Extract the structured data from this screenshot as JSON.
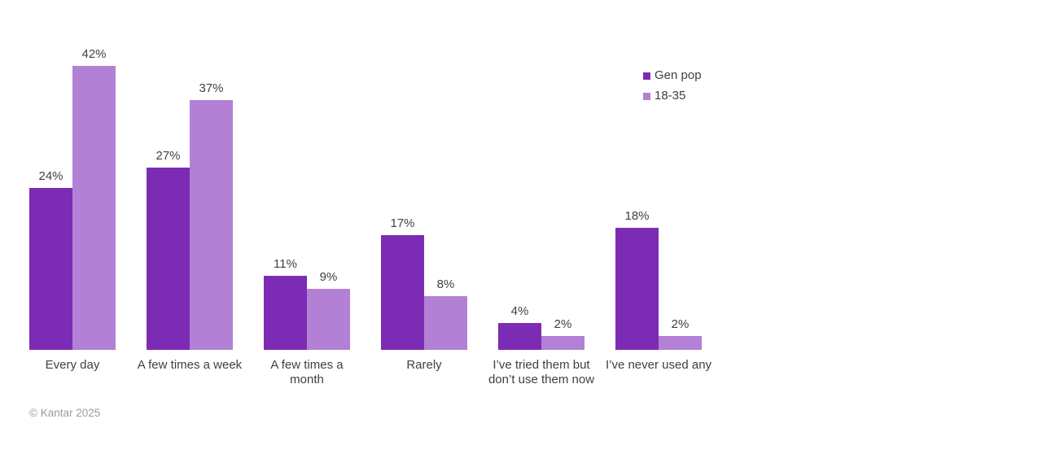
{
  "chart_data": {
    "type": "bar",
    "categories": [
      "Every day",
      "A few times a week",
      "A few times a\nmonth",
      "Rarely",
      "I’ve tried them but\ndon’t use them now",
      "I’ve never used any"
    ],
    "series": [
      {
        "name": "Gen pop",
        "color": "#7C2CB4",
        "values": [
          24,
          27,
          11,
          17,
          4,
          18
        ]
      },
      {
        "name": "18-35",
        "color": "#B280D5",
        "values": [
          42,
          37,
          9,
          8,
          2,
          2
        ]
      }
    ],
    "value_suffix": "%",
    "title": "",
    "xlabel": "",
    "ylabel": "",
    "ylim": [
      0,
      45
    ],
    "grid": false,
    "legend_position": "top-right",
    "value_label_color": "#404040",
    "category_label_color": "#404040"
  },
  "footer": {
    "copyright": "© Kantar 2025"
  },
  "colors": {
    "background": "#FFFFFF",
    "footer_text": "#9C9C9C"
  }
}
